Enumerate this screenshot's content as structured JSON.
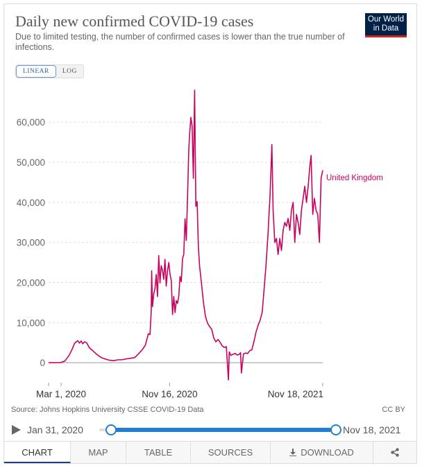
{
  "header": {
    "title": "Daily new confirmed COVID-19 cases",
    "subtitle": "Due to limited testing, the number of confirmed cases is lower than the true number of infections.",
    "logo_line1": "Our World",
    "logo_line2": "in Data"
  },
  "scale_toggle": {
    "linear_label": "LINEAR",
    "log_label": "LOG",
    "selected": "LINEAR"
  },
  "colors": {
    "series": "#c8005e",
    "accent": "#1f7ed6",
    "logo_bg": "#002147",
    "logo_stripe": "#ce261e"
  },
  "chart_data": {
    "type": "line",
    "title": "Daily new confirmed COVID-19 cases",
    "ylim": [
      -5000,
      68000
    ],
    "x_range": [
      "2020-01-31",
      "2021-11-18"
    ],
    "y_ticks": [
      0,
      10000,
      20000,
      30000,
      40000,
      50000,
      60000
    ],
    "y_tick_labels": [
      "0",
      "10,000",
      "20,000",
      "30,000",
      "40,000",
      "50,000",
      "60,000"
    ],
    "x_ticks": [
      "2020-01-31",
      "2020-03-01",
      "2020-11-16",
      "2021-11-18"
    ],
    "x_tick_labels": [
      "",
      "Mar 1, 2020",
      "Nov 16, 2020",
      "Nov 18, 2021"
    ],
    "grid": "horizontal dashed",
    "series": [
      {
        "name": "United Kingdom",
        "x": [
          "2020-01-31",
          "2020-02-29",
          "2020-03-10",
          "2020-03-20",
          "2020-03-28",
          "2020-04-02",
          "2020-04-06",
          "2020-04-10",
          "2020-04-14",
          "2020-04-18",
          "2020-04-22",
          "2020-04-26",
          "2020-05-01",
          "2020-05-08",
          "2020-05-15",
          "2020-05-22",
          "2020-05-29",
          "2020-06-05",
          "2020-06-15",
          "2020-06-25",
          "2020-07-05",
          "2020-07-15",
          "2020-07-25",
          "2020-08-05",
          "2020-08-15",
          "2020-08-25",
          "2020-09-05",
          "2020-09-12",
          "2020-09-19",
          "2020-09-26",
          "2020-09-30",
          "2020-10-03",
          "2020-10-04",
          "2020-10-06",
          "2020-10-09",
          "2020-10-12",
          "2020-10-15",
          "2020-10-18",
          "2020-10-21",
          "2020-10-24",
          "2020-10-27",
          "2020-10-30",
          "2020-11-02",
          "2020-11-05",
          "2020-11-08",
          "2020-11-11",
          "2020-11-14",
          "2020-11-17",
          "2020-11-20",
          "2020-11-23",
          "2020-11-26",
          "2020-11-29",
          "2020-12-02",
          "2020-12-05",
          "2020-12-08",
          "2020-12-11",
          "2020-12-14",
          "2020-12-17",
          "2020-12-20",
          "2020-12-23",
          "2020-12-26",
          "2020-12-29",
          "2021-01-01",
          "2021-01-03",
          "2021-01-06",
          "2021-01-09",
          "2021-01-12",
          "2021-01-15",
          "2021-01-18",
          "2021-01-21",
          "2021-01-24",
          "2021-01-27",
          "2021-01-31",
          "2021-02-05",
          "2021-02-10",
          "2021-02-15",
          "2021-02-20",
          "2021-02-25",
          "2021-03-02",
          "2021-03-07",
          "2021-03-12",
          "2021-03-17",
          "2021-03-22",
          "2021-03-27",
          "2021-04-01",
          "2021-04-06",
          "2021-04-08",
          "2021-04-12",
          "2021-04-17",
          "2021-04-22",
          "2021-04-27",
          "2021-05-02",
          "2021-05-05",
          "2021-05-07",
          "2021-05-12",
          "2021-05-17",
          "2021-05-22",
          "2021-05-27",
          "2021-06-01",
          "2021-06-06",
          "2021-06-11",
          "2021-06-16",
          "2021-06-21",
          "2021-06-26",
          "2021-07-01",
          "2021-07-05",
          "2021-07-10",
          "2021-07-15",
          "2021-07-19",
          "2021-07-22",
          "2021-07-26",
          "2021-07-30",
          "2021-08-03",
          "2021-08-07",
          "2021-08-11",
          "2021-08-15",
          "2021-08-19",
          "2021-08-23",
          "2021-08-27",
          "2021-08-31",
          "2021-09-04",
          "2021-09-08",
          "2021-09-12",
          "2021-09-16",
          "2021-09-20",
          "2021-09-24",
          "2021-09-28",
          "2021-10-02",
          "2021-10-06",
          "2021-10-10",
          "2021-10-14",
          "2021-10-18",
          "2021-10-21",
          "2021-10-25",
          "2021-10-29",
          "2021-11-02",
          "2021-11-06",
          "2021-11-10",
          "2021-11-14",
          "2021-11-18"
        ],
        "y": [
          0,
          30,
          400,
          1800,
          3500,
          4800,
          5200,
          5500,
          4900,
          5400,
          4700,
          5200,
          5000,
          3700,
          3100,
          2400,
          1800,
          1300,
          900,
          600,
          500,
          700,
          750,
          950,
          1100,
          1300,
          2500,
          3300,
          4400,
          7200,
          7000,
          12800,
          22900,
          14000,
          17200,
          18500,
          22000,
          16500,
          26700,
          19900,
          24200,
          23000,
          20800,
          25800,
          19100,
          22900,
          25000,
          22000,
          20500,
          12000,
          16500,
          12500,
          15500,
          14800,
          16600,
          21500,
          20200,
          26000,
          27000,
          35900,
          30500,
          41400,
          53100,
          57000,
          61200,
          59000,
          46000,
          68000,
          39000,
          40200,
          29000,
          24000,
          20300,
          15000,
          11500,
          9800,
          9000,
          8300,
          6100,
          5200,
          5800,
          5100,
          4200,
          3800,
          4000,
          -4300,
          2700,
          1800,
          2100,
          2300,
          1900,
          2100,
          2500,
          -2600,
          2200,
          2400,
          2300,
          3000,
          3200,
          5200,
          7600,
          9300,
          10600,
          12600,
          19000,
          24200,
          32300,
          42300,
          54400,
          38000,
          30000,
          31000,
          27000,
          31000,
          28000,
          33000,
          35000,
          34000,
          36000,
          33000,
          38000,
          40000,
          30000,
          37000,
          35000,
          32000,
          38000,
          41000,
          44000,
          40000,
          44000,
          49000,
          51700,
          37000,
          41000,
          38000,
          37000,
          30000,
          46000,
          48000
        ]
      }
    ],
    "series_label": "United Kingdom"
  },
  "footer": {
    "source": "Source: Johns Hopkins University CSSE COVID-19 Data",
    "license": "CC BY",
    "timeline_start": "Jan 31, 2020",
    "timeline_end": "Nov 18, 2021"
  },
  "tabs": [
    {
      "label": "CHART",
      "active": true
    },
    {
      "label": "MAP"
    },
    {
      "label": "TABLE"
    },
    {
      "label": "SOURCES"
    },
    {
      "label": "DOWNLOAD"
    }
  ]
}
